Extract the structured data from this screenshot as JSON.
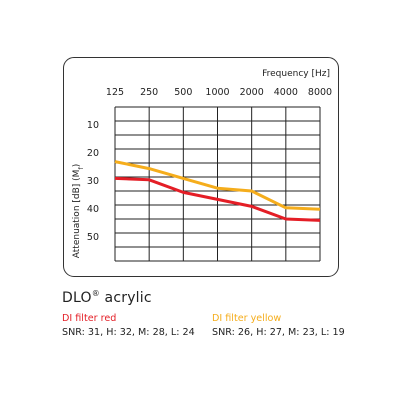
{
  "chart_data": {
    "type": "line",
    "x_label": "Frequency [Hz]",
    "y_label": "Attenuation [dB] (M",
    "y_label_sub": "f",
    "y_label_end": ")",
    "categories": [
      "125",
      "250",
      "500",
      "1000",
      "2000",
      "4000",
      "8000"
    ],
    "y_ticks": [
      "10",
      "20",
      "30",
      "40",
      "50"
    ],
    "ylim": [
      0,
      55
    ],
    "y_inverted": true,
    "grid": true,
    "series": [
      {
        "name": "DI filter red",
        "color": "#e41e26",
        "values": [
          25.5,
          26,
          30.5,
          33,
          35.5,
          40,
          40.5
        ]
      },
      {
        "name": "DI filter yellow",
        "color": "#f5ad1c",
        "values": [
          19.5,
          22,
          25.5,
          29,
          30,
          36,
          36.5
        ]
      }
    ]
  },
  "product": {
    "name": "DLO",
    "reg": "®",
    "suffix": " acrylic"
  },
  "legend": [
    {
      "name": "DI filter red",
      "snr": "SNR: 31, H: 32, M: 28, L: 24",
      "color": "#e41e26"
    },
    {
      "name": "DI filter yellow",
      "snr": "SNR: 26, H: 27, M: 23, L: 19",
      "color": "#f5ad1c"
    }
  ]
}
